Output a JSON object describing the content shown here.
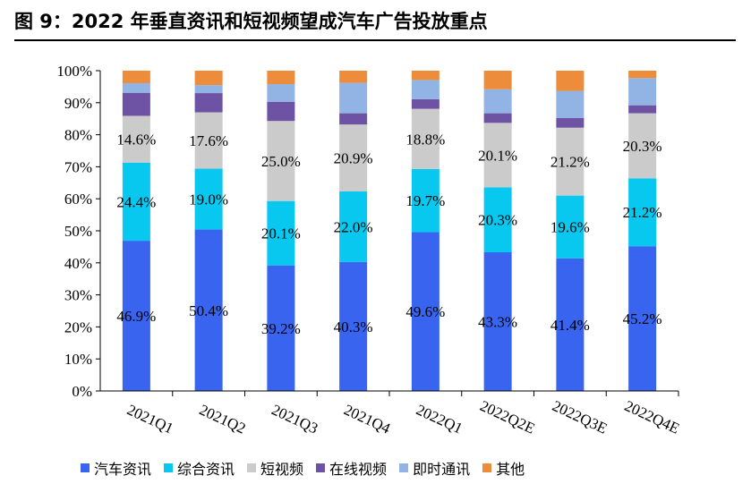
{
  "figure": {
    "title": "图 9：2022 年垂直资讯和短视频望成汽车广告投放重点"
  },
  "chart_data": {
    "type": "bar",
    "stacked": true,
    "categories": [
      "2021Q1",
      "2021Q2",
      "2021Q3",
      "2021Q4",
      "2022Q1",
      "2022Q2E",
      "2022Q3E",
      "2022Q4E"
    ],
    "ylim": [
      0,
      100
    ],
    "yticks": [
      "0%",
      "10%",
      "20%",
      "30%",
      "40%",
      "50%",
      "60%",
      "70%",
      "80%",
      "90%",
      "100%"
    ],
    "legend_position": "bottom",
    "series": [
      {
        "name": "汽车资讯",
        "color": "#3864f0",
        "values": [
          46.9,
          50.4,
          39.2,
          40.3,
          49.6,
          43.3,
          41.4,
          45.2
        ],
        "labels": [
          "46.9%",
          "50.4%",
          "39.2%",
          "40.3%",
          "49.6%",
          "43.3%",
          "41.4%",
          "45.2%"
        ]
      },
      {
        "name": "综合资讯",
        "color": "#08c8f0",
        "values": [
          24.4,
          19.0,
          20.1,
          22.0,
          19.7,
          20.3,
          19.6,
          21.2
        ],
        "labels": [
          "24.4%",
          "19.0%",
          "20.1%",
          "22.0%",
          "19.7%",
          "20.3%",
          "19.6%",
          "21.2%"
        ]
      },
      {
        "name": "短视频",
        "color": "#cbcbcb",
        "values": [
          14.6,
          17.6,
          25.0,
          20.9,
          18.8,
          20.1,
          21.2,
          20.3
        ],
        "labels": [
          "14.6%",
          "17.6%",
          "25.0%",
          "20.9%",
          "18.8%",
          "20.1%",
          "21.2%",
          "20.3%"
        ]
      },
      {
        "name": "在线视频",
        "color": "#6e53a4",
        "values": [
          7.2,
          6.0,
          6.0,
          3.5,
          3.0,
          3.0,
          3.0,
          2.5
        ]
      },
      {
        "name": "即时通讯",
        "color": "#91b4e4",
        "values": [
          3.0,
          2.5,
          5.5,
          9.5,
          6.0,
          7.5,
          8.5,
          8.5
        ]
      },
      {
        "name": "其他",
        "color": "#ed8c3a",
        "values": [
          3.9,
          4.5,
          4.2,
          3.8,
          2.9,
          5.8,
          6.3,
          2.3
        ]
      }
    ]
  }
}
